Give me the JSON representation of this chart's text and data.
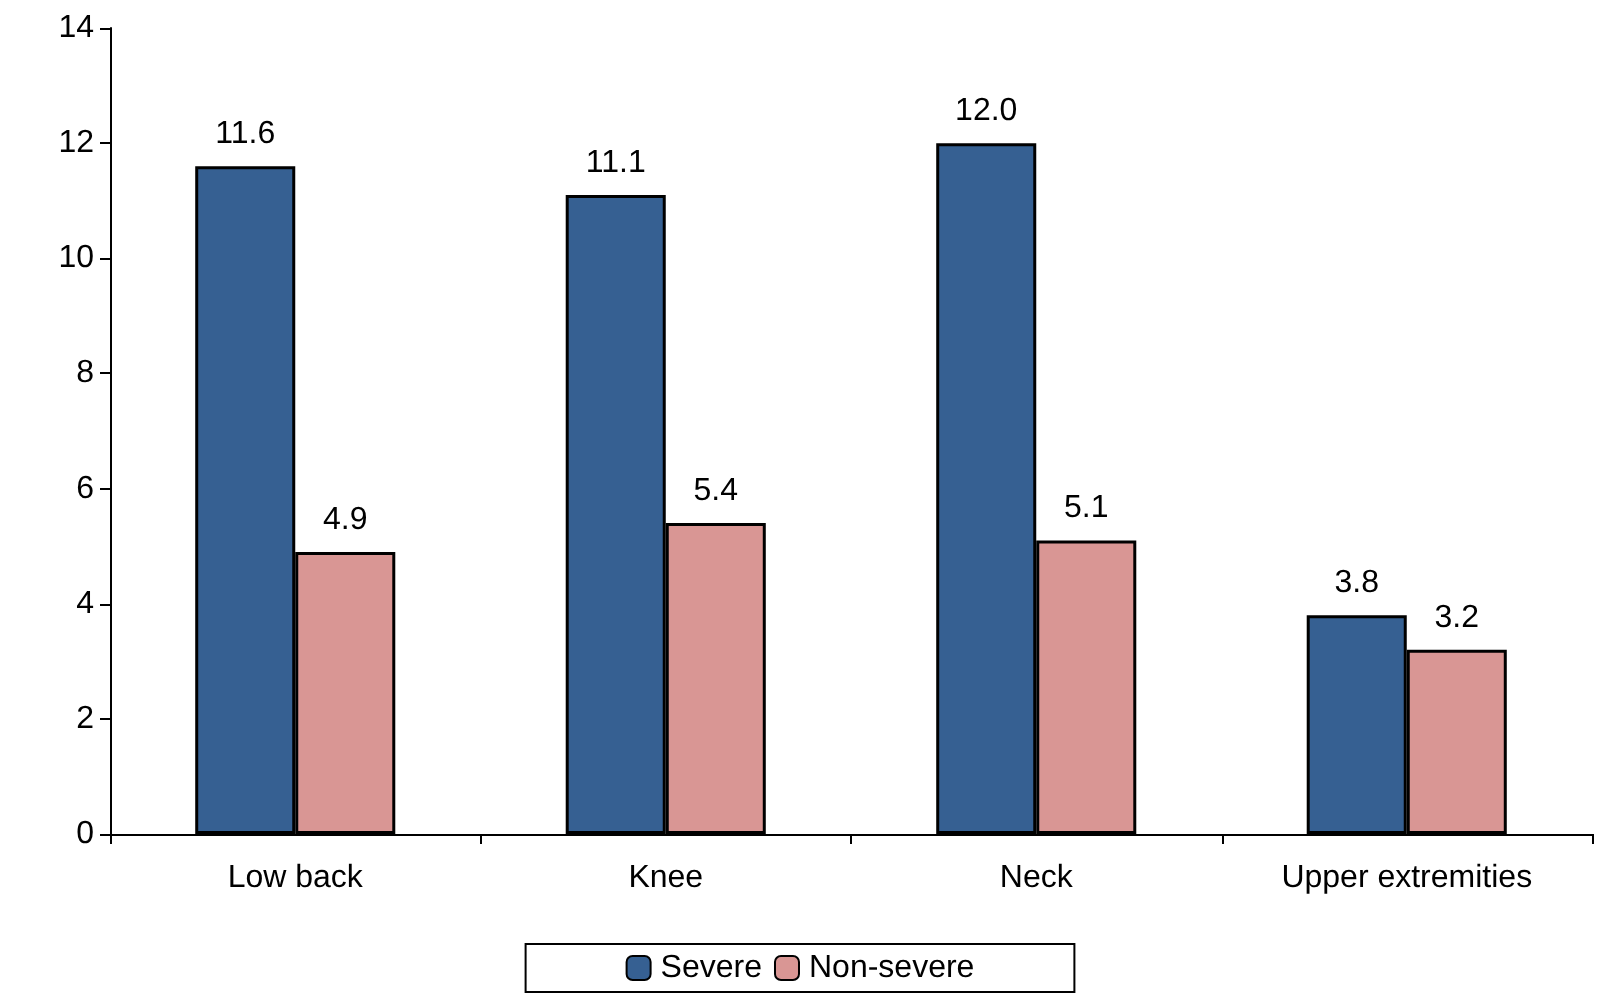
{
  "chart_data": {
    "type": "bar",
    "categories": [
      "Low back",
      "Knee",
      "Neck",
      "Upper extremities"
    ],
    "series": [
      {
        "name": "Severe",
        "color": "#366092",
        "values": [
          11.6,
          11.1,
          12.0,
          3.8
        ],
        "value_labels": [
          "11.6",
          "11.1",
          "12.0",
          "3.8"
        ]
      },
      {
        "name": "Non-severe",
        "color": "#d99694",
        "values": [
          4.9,
          5.4,
          5.1,
          3.2
        ],
        "value_labels": [
          "4.9",
          "5.4",
          "5.1",
          "3.2"
        ]
      }
    ],
    "ylim": [
      0,
      14
    ],
    "yticks": [
      0,
      2,
      4,
      6,
      8,
      10,
      12,
      14
    ],
    "grid": false,
    "legend": "bottom"
  }
}
